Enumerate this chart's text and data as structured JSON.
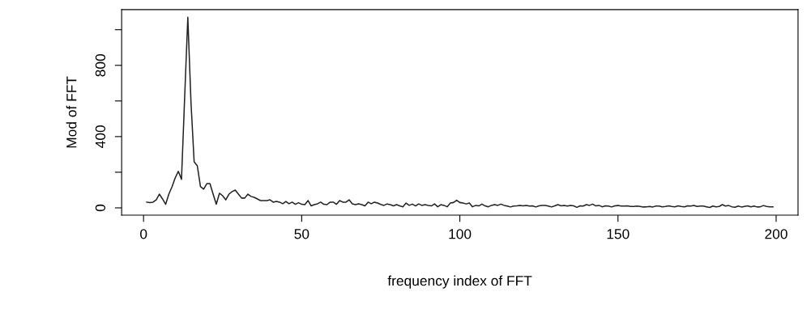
{
  "chart_data": {
    "type": "line",
    "xlabel": "frequency index of FFT",
    "ylabel": "Mod of FFT",
    "x": [
      1,
      2,
      3,
      4,
      5,
      6,
      7,
      8,
      9,
      10,
      11,
      12,
      13,
      14,
      15,
      16,
      17,
      18,
      19,
      20,
      21,
      22,
      23,
      24,
      25,
      26,
      27,
      28,
      29,
      30,
      31,
      32,
      33,
      34,
      35,
      36,
      37,
      38,
      39,
      40,
      41,
      42,
      43,
      44,
      45,
      46,
      47,
      48,
      49,
      50,
      51,
      52,
      53,
      54,
      55,
      56,
      57,
      58,
      59,
      60,
      61,
      62,
      63,
      64,
      65,
      66,
      67,
      68,
      69,
      70,
      71,
      72,
      73,
      74,
      75,
      76,
      77,
      78,
      79,
      80,
      81,
      82,
      83,
      84,
      85,
      86,
      87,
      88,
      89,
      90,
      91,
      92,
      93,
      94,
      95,
      96,
      97,
      98,
      99,
      100,
      101,
      102,
      103,
      104,
      105,
      106,
      107,
      108,
      109,
      110,
      111,
      112,
      113,
      114,
      115,
      116,
      117,
      118,
      119,
      120,
      121,
      122,
      123,
      124,
      125,
      126,
      127,
      128,
      129,
      130,
      131,
      132,
      133,
      134,
      135,
      136,
      137,
      138,
      139,
      140,
      141,
      142,
      143,
      144,
      145,
      146,
      147,
      148,
      149,
      150,
      151,
      152,
      153,
      154,
      155,
      156,
      157,
      158,
      159,
      160,
      161,
      162,
      163,
      164,
      165,
      166,
      167,
      168,
      169,
      170,
      171,
      172,
      173,
      174,
      175,
      176,
      177,
      178,
      179,
      180,
      181,
      182,
      183,
      184,
      185,
      186,
      187,
      188,
      189,
      190,
      191,
      192,
      193,
      194,
      195,
      196,
      197,
      198,
      199
    ],
    "series": [
      {
        "color": "#222222",
        "values": [
          32,
          29,
          32,
          45,
          77,
          50,
          20,
          77,
          118,
          168,
          205,
          160,
          620,
          1070,
          592,
          259,
          236,
          120,
          105,
          136,
          136,
          77,
          20,
          82,
          68,
          45,
          77,
          91,
          100,
          77,
          55,
          55,
          77,
          64,
          59,
          50,
          41,
          41,
          41,
          45,
          32,
          36,
          32,
          23,
          36,
          23,
          32,
          20,
          29,
          20,
          18,
          41,
          11,
          18,
          23,
          32,
          20,
          18,
          32,
          32,
          20,
          41,
          32,
          32,
          45,
          23,
          18,
          23,
          18,
          11,
          32,
          23,
          32,
          27,
          19,
          14,
          22,
          18,
          11,
          18,
          11,
          6,
          27,
          14,
          21,
          11,
          22,
          14,
          18,
          14,
          11,
          22,
          6,
          18,
          14,
          6,
          27,
          30,
          43,
          30,
          27,
          22,
          27,
          6,
          14,
          11,
          21,
          11,
          6,
          14,
          18,
          14,
          21,
          14,
          10,
          5,
          10,
          11,
          14,
          11,
          14,
          10,
          11,
          5,
          11,
          14,
          14,
          10,
          5,
          11,
          18,
          11,
          14,
          10,
          14,
          11,
          3,
          11,
          10,
          18,
          14,
          21,
          11,
          14,
          6,
          11,
          10,
          5,
          11,
          13,
          10,
          10,
          11,
          8,
          8,
          10,
          8,
          5,
          6,
          8,
          5,
          10,
          10,
          6,
          8,
          11,
          8,
          6,
          11,
          8,
          6,
          11,
          10,
          14,
          8,
          10,
          10,
          6,
          2,
          10,
          6,
          8,
          18,
          10,
          13,
          6,
          3,
          10,
          5,
          8,
          11,
          6,
          10,
          5,
          6,
          13,
          8,
          6,
          6
        ]
      }
    ],
    "xlim": [
      -6.92,
      206.92
    ],
    "ylim": [
      -41,
      1113
    ],
    "xticks": [
      0,
      50,
      100,
      150,
      200
    ],
    "yticks": [
      0,
      {
        "value": 200,
        "label": null
      },
      400,
      {
        "value": 600,
        "label": null
      },
      800,
      {
        "value": 1000,
        "label": null
      }
    ],
    "marker": "none",
    "line_style": "solid",
    "grid": false,
    "legend": false
  }
}
